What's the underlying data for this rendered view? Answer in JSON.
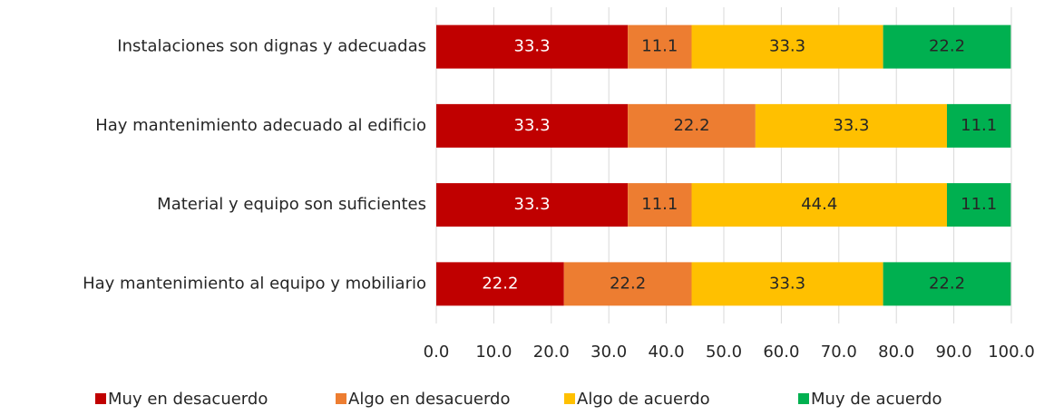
{
  "chart_data": {
    "type": "stacked_barh",
    "categories": [
      "Instalaciones son dignas y adecuadas",
      "Hay mantenimiento adecuado al edificio",
      "Material y equipo son suficientes",
      "Hay mantenimiento al equipo y mobiliario"
    ],
    "series": [
      {
        "name": "Muy en desacuerdo",
        "color": "#c00000",
        "label_color": "#ffffff",
        "values": [
          33.3,
          33.3,
          33.3,
          22.2
        ]
      },
      {
        "name": "Algo en desacuerdo",
        "color": "#ed7d31",
        "label_color": "#262626",
        "values": [
          11.1,
          22.2,
          11.1,
          22.2
        ]
      },
      {
        "name": "Algo de acuerdo",
        "color": "#ffc000",
        "label_color": "#262626",
        "values": [
          33.3,
          33.3,
          44.4,
          33.3
        ]
      },
      {
        "name": "Muy de acuerdo",
        "color": "#00b050",
        "label_color": "#262626",
        "values": [
          22.2,
          11.1,
          11.1,
          22.2
        ]
      }
    ],
    "xlim": [
      0,
      100
    ],
    "xticks": [
      {
        "value": 0,
        "label": "0.0"
      },
      {
        "value": 10,
        "label": "10.0"
      },
      {
        "value": 20,
        "label": "20.0"
      },
      {
        "value": 30,
        "label": "30.0"
      },
      {
        "value": 40,
        "label": "40.0"
      },
      {
        "value": 50,
        "label": "50.0"
      },
      {
        "value": 60,
        "label": "60.0"
      },
      {
        "value": 70,
        "label": "70.0"
      },
      {
        "value": 80,
        "label": "80.0"
      },
      {
        "value": 90,
        "label": "90.0"
      },
      {
        "value": 100,
        "label": "100.0"
      }
    ],
    "grid": true,
    "legend": "bottom"
  }
}
